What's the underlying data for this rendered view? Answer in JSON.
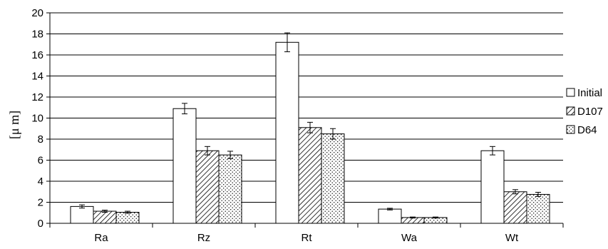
{
  "chart_data": {
    "type": "bar",
    "categories": [
      "Ra",
      "Rz",
      "Rt",
      "Wa",
      "Wt"
    ],
    "ylabel": "[μ m]",
    "ylim": [
      0,
      20
    ],
    "yticks": [
      "0",
      "2",
      "4",
      "6",
      "8",
      "10",
      "12",
      "14",
      "16",
      "18",
      "20"
    ],
    "grid": true,
    "legend_position": "right",
    "series": [
      {
        "name": "Initial",
        "pattern": "solid",
        "fill": "#ffffff",
        "values": [
          1.6,
          10.9,
          17.2,
          1.35,
          6.9
        ],
        "errors": [
          0.15,
          0.5,
          0.9,
          0.08,
          0.4
        ]
      },
      {
        "name": "D107",
        "pattern": "hatch",
        "fill": "#ffffff",
        "values": [
          1.15,
          6.9,
          9.1,
          0.55,
          3.0
        ],
        "errors": [
          0.1,
          0.4,
          0.5,
          0.05,
          0.2
        ]
      },
      {
        "name": "D64",
        "pattern": "dots",
        "fill": "#ffffff",
        "values": [
          1.05,
          6.5,
          8.5,
          0.55,
          2.75
        ],
        "errors": [
          0.1,
          0.35,
          0.5,
          0.05,
          0.2
        ]
      }
    ]
  }
}
